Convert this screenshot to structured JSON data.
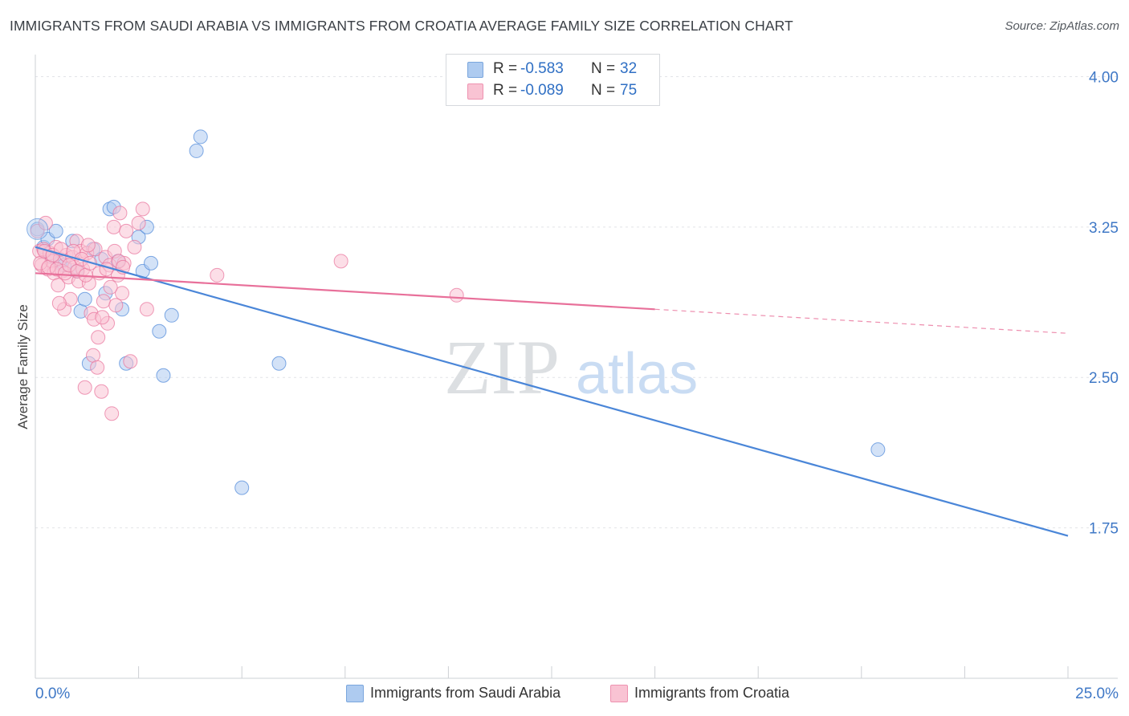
{
  "title": "IMMIGRANTS FROM SAUDI ARABIA VS IMMIGRANTS FROM CROATIA AVERAGE FAMILY SIZE CORRELATION CHART",
  "source": "Source: ZipAtlas.com",
  "watermark": {
    "zip": "ZIP",
    "atlas": "atlas"
  },
  "legend": {
    "r_label": "R =",
    "n_label": "N =",
    "rows": [
      {
        "r": "-0.583",
        "n": "32",
        "color": "#aecbf0",
        "border": "#7aa6dd"
      },
      {
        "r": "-0.089",
        "n": "75",
        "color": "#f9c3d3",
        "border": "#ee92b0"
      }
    ]
  },
  "bottom_legend": [
    {
      "label": "Immigrants from Saudi Arabia",
      "color": "#aecbf0",
      "border": "#7aa6dd"
    },
    {
      "label": "Immigrants from Croatia",
      "color": "#f9c3d3",
      "border": "#ee92b0"
    }
  ],
  "chart_data": {
    "type": "scatter",
    "title": "IMMIGRANTS FROM SAUDI ARABIA VS IMMIGRANTS FROM CROATIA AVERAGE FAMILY SIZE CORRELATION CHART",
    "xlabel": "",
    "ylabel": "Average Family Size",
    "xlim": [
      0,
      25
    ],
    "ylim": [
      1.0,
      4.15
    ],
    "x_tick_labels": [
      "0.0%",
      "25.0%"
    ],
    "y_ticks": [
      1.75,
      2.5,
      3.25,
      4.0
    ],
    "y_tick_labels": [
      "1.75",
      "2.50",
      "3.25",
      "4.00"
    ],
    "grid": true,
    "legend_position": "top-center",
    "series": [
      {
        "name": "Immigrants from Saudi Arabia",
        "color": "#4a86d8",
        "fill": "#aecbf0",
        "points": [
          [
            0.05,
            3.24
          ],
          [
            0.2,
            3.15
          ],
          [
            0.3,
            3.19
          ],
          [
            0.4,
            3.1
          ],
          [
            0.5,
            3.23
          ],
          [
            0.6,
            3.07
          ],
          [
            0.7,
            3.06
          ],
          [
            0.9,
            3.18
          ],
          [
            1.0,
            3.03
          ],
          [
            1.1,
            2.83
          ],
          [
            1.2,
            2.89
          ],
          [
            1.3,
            2.57
          ],
          [
            1.4,
            3.14
          ],
          [
            1.6,
            3.09
          ],
          [
            1.7,
            2.92
          ],
          [
            1.8,
            3.34
          ],
          [
            1.9,
            3.35
          ],
          [
            2.0,
            3.08
          ],
          [
            2.1,
            2.84
          ],
          [
            2.2,
            2.57
          ],
          [
            2.5,
            3.2
          ],
          [
            2.6,
            3.03
          ],
          [
            2.7,
            3.25
          ],
          [
            2.8,
            3.07
          ],
          [
            3.0,
            2.73
          ],
          [
            3.1,
            2.51
          ],
          [
            3.3,
            2.81
          ],
          [
            3.9,
            3.63
          ],
          [
            4.0,
            3.7
          ],
          [
            5.0,
            1.95
          ],
          [
            5.9,
            2.57
          ],
          [
            20.4,
            2.14
          ]
        ],
        "trend": {
          "x": [
            0,
            25
          ],
          "y": [
            3.15,
            1.71
          ]
        }
      },
      {
        "name": "Immigrants from Croatia",
        "color": "#e8709a",
        "fill": "#f9c3d3",
        "points": [
          [
            0.05,
            3.23
          ],
          [
            0.1,
            3.13
          ],
          [
            0.15,
            3.06
          ],
          [
            0.2,
            3.14
          ],
          [
            0.25,
            3.27
          ],
          [
            0.3,
            3.04
          ],
          [
            0.35,
            3.12
          ],
          [
            0.4,
            3.08
          ],
          [
            0.45,
            3.02
          ],
          [
            0.5,
            3.15
          ],
          [
            0.55,
            2.96
          ],
          [
            0.6,
            3.09
          ],
          [
            0.65,
            3.03
          ],
          [
            0.7,
            2.84
          ],
          [
            0.75,
            3.11
          ],
          [
            0.8,
            3.0
          ],
          [
            0.85,
            2.89
          ],
          [
            0.9,
            3.1
          ],
          [
            0.95,
            3.05
          ],
          [
            1.0,
            3.18
          ],
          [
            1.05,
            2.98
          ],
          [
            1.1,
            3.13
          ],
          [
            1.15,
            3.04
          ],
          [
            1.2,
            2.45
          ],
          [
            1.25,
            3.12
          ],
          [
            1.3,
            2.97
          ],
          [
            1.35,
            2.82
          ],
          [
            1.4,
            2.61
          ],
          [
            1.45,
            3.14
          ],
          [
            1.5,
            2.55
          ],
          [
            1.55,
            3.02
          ],
          [
            1.6,
            2.43
          ],
          [
            1.65,
            2.88
          ],
          [
            1.7,
            3.1
          ],
          [
            1.75,
            2.77
          ],
          [
            1.8,
            3.06
          ],
          [
            1.85,
            2.32
          ],
          [
            1.9,
            3.25
          ],
          [
            1.95,
            2.86
          ],
          [
            2.0,
            3.01
          ],
          [
            2.05,
            3.32
          ],
          [
            2.1,
            2.92
          ],
          [
            2.15,
            3.07
          ],
          [
            2.2,
            3.23
          ],
          [
            2.3,
            2.58
          ],
          [
            2.4,
            3.15
          ],
          [
            2.5,
            3.27
          ],
          [
            2.6,
            3.34
          ],
          [
            2.7,
            2.84
          ],
          [
            0.12,
            3.07
          ],
          [
            0.22,
            3.13
          ],
          [
            0.32,
            3.05
          ],
          [
            0.42,
            3.11
          ],
          [
            0.52,
            3.04
          ],
          [
            0.62,
            3.14
          ],
          [
            0.72,
            3.02
          ],
          [
            0.82,
            3.06
          ],
          [
            0.92,
            3.13
          ],
          [
            1.02,
            3.03
          ],
          [
            1.12,
            3.09
          ],
          [
            1.22,
            3.01
          ],
          [
            1.32,
            3.07
          ],
          [
            1.42,
            2.79
          ],
          [
            1.52,
            2.7
          ],
          [
            1.62,
            2.8
          ],
          [
            1.72,
            3.04
          ],
          [
            1.82,
            2.95
          ],
          [
            1.92,
            3.13
          ],
          [
            2.02,
            3.08
          ],
          [
            2.12,
            3.05
          ],
          [
            4.4,
            3.01
          ],
          [
            7.4,
            3.08
          ],
          [
            10.2,
            2.91
          ],
          [
            0.58,
            2.87
          ],
          [
            1.28,
            3.16
          ]
        ],
        "trend": {
          "x": [
            0,
            15
          ],
          "y": [
            3.02,
            2.84
          ]
        },
        "trend_dashed": {
          "x": [
            15,
            25
          ],
          "y": [
            2.84,
            2.72
          ]
        }
      }
    ]
  }
}
